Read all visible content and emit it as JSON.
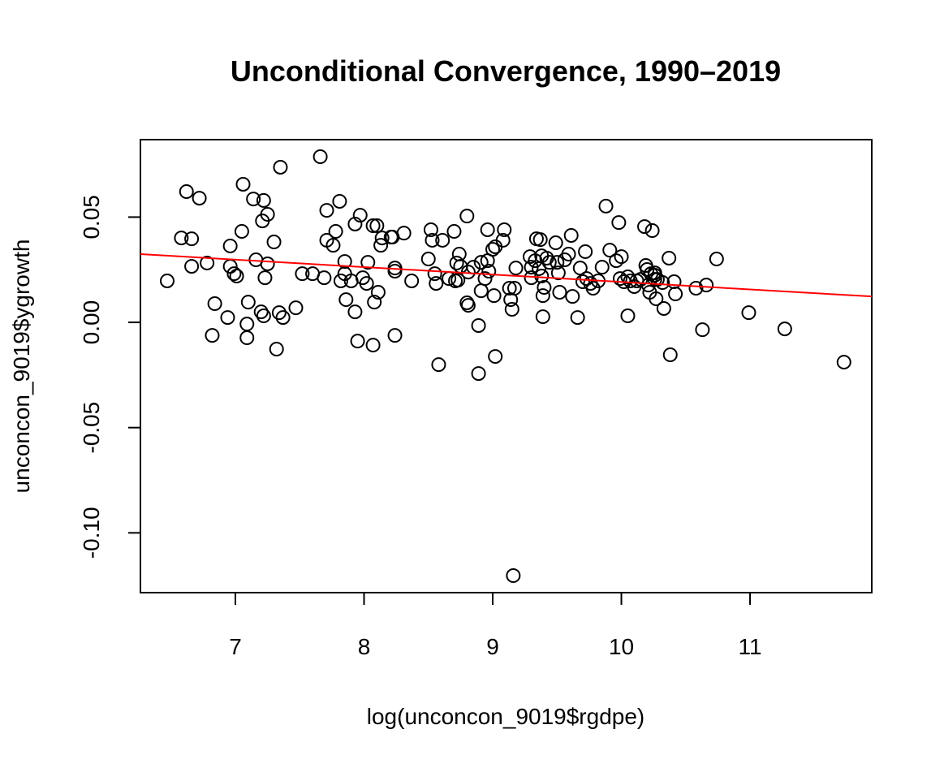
{
  "chart_data": {
    "type": "scatter",
    "title": "Unconditional Convergence, 1990–2019",
    "x_label": "log(unconcon_9019$rgdpe)",
    "y_label": "unconcon_9019$ygrowth",
    "color": "#000000",
    "xlim": [
      6.262,
      11.946
    ],
    "ylim": [
      -0.1284,
      0.0868
    ],
    "xticks": [
      7,
      8,
      9,
      10,
      11
    ],
    "yticks": [
      {
        "value": -0.1,
        "label": "-0.10"
      },
      {
        "value": -0.05,
        "label": "-0.05"
      },
      {
        "value": 0,
        "label": "0.00"
      },
      {
        "value": 0.05,
        "label": "0.05"
      }
    ],
    "x": [
      6.47,
      6.58,
      6.62,
      6.66,
      6.66,
      6.72,
      6.78,
      6.82,
      6.84,
      6.94,
      6.96,
      6.96,
      6.99,
      7.01,
      7.05,
      7.06,
      7.09,
      7.09,
      7.1,
      7.14,
      7.16,
      7.2,
      7.21,
      7.22,
      7.22,
      7.23,
      7.25,
      7.25,
      7.3,
      7.32,
      7.34,
      7.35,
      7.37,
      7.47,
      7.52,
      7.6,
      7.66,
      7.69,
      7.71,
      7.71,
      7.76,
      7.78,
      7.81,
      7.82,
      7.85,
      7.85,
      7.86,
      7.9,
      7.93,
      7.93,
      7.95,
      7.97,
      7.99,
      8.02,
      8.03,
      8.07,
      8.07,
      8.08,
      8.1,
      8.11,
      8.13,
      8.14,
      8.21,
      8.22,
      8.24,
      8.24,
      8.24,
      8.31,
      8.37,
      8.5,
      8.52,
      8.53,
      8.55,
      8.56,
      8.58,
      8.61,
      8.66,
      8.7,
      8.71,
      8.72,
      8.73,
      8.74,
      8.75,
      8.8,
      8.8,
      8.81,
      8.81,
      8.85,
      8.89,
      8.89,
      8.91,
      8.91,
      8.94,
      8.96,
      8.96,
      8.97,
      9.0,
      9.01,
      9.02,
      9.02,
      9.08,
      9.09,
      9.13,
      9.14,
      9.15,
      9.16,
      9.17,
      9.18,
      9.29,
      9.3,
      9.3,
      9.33,
      9.34,
      9.36,
      9.37,
      9.38,
      9.38,
      9.39,
      9.39,
      9.4,
      9.42,
      9.44,
      9.49,
      9.5,
      9.51,
      9.52,
      9.56,
      9.59,
      9.61,
      9.62,
      9.66,
      9.68,
      9.7,
      9.72,
      9.73,
      9.76,
      9.78,
      9.82,
      9.85,
      9.88,
      9.91,
      9.96,
      9.98,
      9.99,
      10.0,
      10.02,
      10.05,
      10.05,
      10.07,
      10.1,
      10.12,
      10.15,
      10.18,
      10.19,
      10.2,
      10.21,
      10.22,
      10.23,
      10.24,
      10.26,
      10.26,
      10.26,
      10.27,
      10.28,
      10.32,
      10.33,
      10.37,
      10.38,
      10.41,
      10.42,
      10.58,
      10.63,
      10.66,
      10.74,
      10.99,
      11.27,
      11.73
    ],
    "values": [
      0.0197,
      0.0401,
      0.0621,
      0.0397,
      0.0266,
      0.059,
      0.0282,
      -0.0062,
      0.0089,
      0.0023,
      0.0363,
      0.0266,
      0.0231,
      0.022,
      0.0432,
      0.0656,
      -0.0008,
      -0.0073,
      0.0096,
      0.0586,
      0.0297,
      0.005,
      0.0482,
      0.0579,
      0.0031,
      0.0212,
      0.0513,
      0.0278,
      0.0382,
      -0.0127,
      0.0046,
      0.0737,
      0.0023,
      0.0069,
      0.0231,
      0.0231,
      0.0787,
      0.0212,
      0.0532,
      0.039,
      0.0366,
      0.0432,
      0.0575,
      0.0197,
      0.0289,
      0.0231,
      0.0108,
      0.0197,
      0.005,
      0.0467,
      -0.0089,
      0.0509,
      0.0212,
      0.0185,
      0.0285,
      -0.0108,
      0.0459,
      0.0096,
      0.0459,
      0.0143,
      0.0366,
      0.0401,
      0.0405,
      0.0405,
      -0.0062,
      0.0258,
      0.0243,
      0.0424,
      0.0197,
      0.0301,
      0.044,
      0.039,
      0.0231,
      0.0185,
      -0.0201,
      0.039,
      0.0208,
      0.0432,
      0.0197,
      0.0282,
      0.0201,
      0.0324,
      0.0266,
      0.0505,
      0.0093,
      0.0081,
      0.0239,
      0.0262,
      -0.0243,
      -0.0015,
      0.0285,
      0.015,
      0.0208,
      0.044,
      0.0293,
      0.0243,
      0.0347,
      0.0127,
      -0.0162,
      0.0359,
      0.039,
      0.044,
      0.0162,
      0.0108,
      0.0062,
      -0.1203,
      0.0162,
      0.0258,
      0.0312,
      0.0262,
      0.0212,
      0.0293,
      0.0397,
      0.0255,
      0.0393,
      0.0316,
      0.022,
      0.0027,
      0.0127,
      0.0166,
      0.0305,
      0.0285,
      0.0378,
      0.0285,
      0.0235,
      0.0143,
      0.0297,
      0.0324,
      0.0413,
      0.0123,
      0.0023,
      0.0258,
      0.0193,
      0.0336,
      0.0208,
      0.0185,
      0.0162,
      0.0197,
      0.0262,
      0.0552,
      0.0343,
      0.0293,
      0.0474,
      0.0208,
      0.0312,
      0.0193,
      0.0216,
      0.0031,
      0.0197,
      0.017,
      0.0197,
      0.0204,
      0.0455,
      0.027,
      0.0251,
      0.0177,
      0.0143,
      0.0231,
      0.0436,
      0.0224,
      0.0204,
      0.0235,
      0.0112,
      0.0204,
      0.0189,
      0.0066,
      0.0305,
      -0.0154,
      0.0193,
      0.0135,
      0.0162,
      -0.0035,
      0.0177,
      0.0301,
      0.0046,
      -0.0031,
      -0.0189
    ],
    "fit_line": {
      "color": "#ff0000",
      "x": [
        6.262,
        11.946
      ],
      "values": [
        0.0324,
        0.0123
      ]
    }
  }
}
